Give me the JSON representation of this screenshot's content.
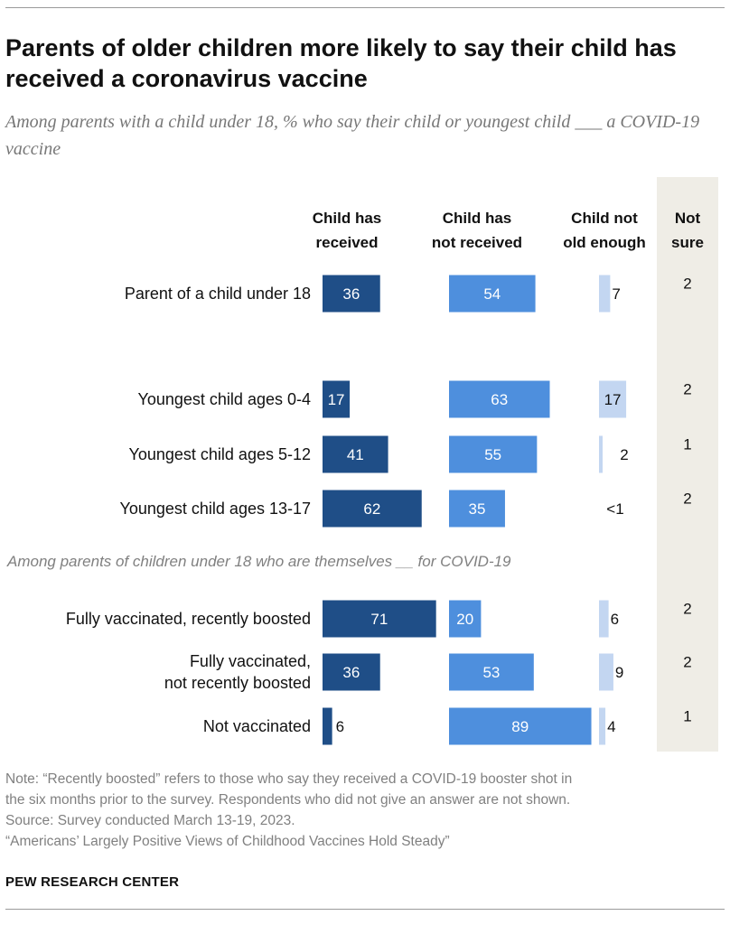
{
  "title": "Parents of older children more likely to say their child has received a coronavirus vaccine",
  "subtitle": "Among parents with a child under 18, % who say their child or youngest child ___ a COVID-19 vaccine",
  "colors": {
    "received": "#1f4e87",
    "not_received": "#4e8fdd",
    "not_old_enough": "#c3d6f1",
    "not_sure_column": "#efede6"
  },
  "chart_data": {
    "type": "bar",
    "columns": [
      {
        "lines": [
          "Child has",
          "received"
        ]
      },
      {
        "lines": [
          "Child has",
          "not received"
        ]
      },
      {
        "lines": [
          "Child not",
          "old enough"
        ]
      },
      {
        "lines": [
          "Not",
          "sure"
        ]
      }
    ],
    "section_label": "Among parents of children under 18 who are themselves __ for COVID-19",
    "rows": [
      {
        "label": [
          "Parent of a child under 18"
        ],
        "received": 36,
        "not_received": 54,
        "not_old_enough": 7,
        "not_old_enough_label": "7",
        "not_sure": "2"
      },
      {
        "label": [
          "Youngest child ages 0-4"
        ],
        "received": 17,
        "not_received": 63,
        "not_old_enough": 17,
        "not_old_enough_label": "17",
        "not_sure": "2"
      },
      {
        "label": [
          "Youngest child ages 5-12"
        ],
        "received": 41,
        "not_received": 55,
        "not_old_enough": 2,
        "not_old_enough_label": "2",
        "not_sure": "1"
      },
      {
        "label": [
          "Youngest child ages 13-17"
        ],
        "received": 62,
        "not_received": 35,
        "not_old_enough": 0,
        "not_old_enough_label": "<1",
        "not_sure": "2"
      },
      {
        "label": [
          "Fully vaccinated, recently boosted"
        ],
        "received": 71,
        "not_received": 20,
        "not_old_enough": 6,
        "not_old_enough_label": "6",
        "not_sure": "2"
      },
      {
        "label": [
          "Fully vaccinated,",
          "not recently boosted"
        ],
        "received": 36,
        "not_received": 53,
        "not_old_enough": 9,
        "not_old_enough_label": "9",
        "not_sure": "2"
      },
      {
        "label": [
          "Not vaccinated"
        ],
        "received": 6,
        "not_received": 89,
        "not_old_enough": 4,
        "not_old_enough_label": "4",
        "not_sure": "1"
      }
    ]
  },
  "notes": {
    "note_line1": "Note: “Recently boosted” refers to those who say they received a COVID-19 booster shot in",
    "note_line2": "the six months prior to the survey. Respondents who did not give an answer are not shown.",
    "source": "Source: Survey conducted March 13-19, 2023.",
    "report": "“Americans’ Largely Positive Views of Childhood Vaccines Hold Steady”"
  },
  "brand": "PEW RESEARCH CENTER"
}
